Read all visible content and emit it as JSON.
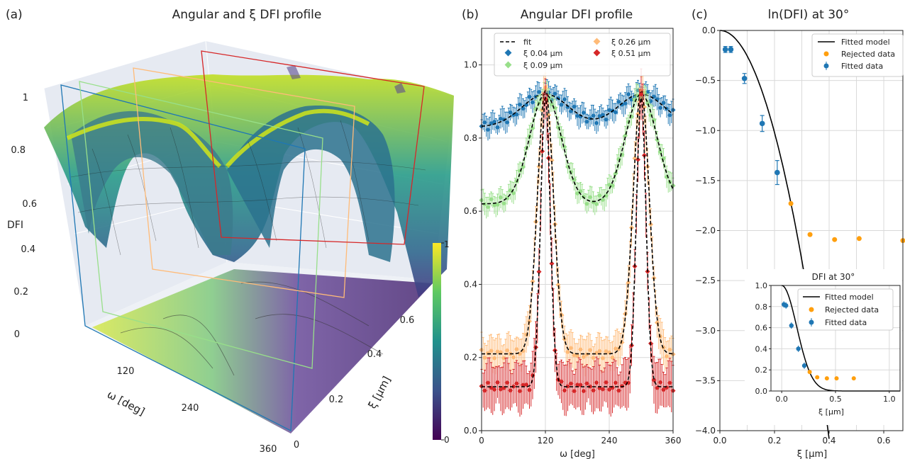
{
  "panel_a": {
    "letter": "(a)",
    "title": "Angular and ξ DFI profile",
    "z_label": "DFI",
    "z_ticks": [
      "0",
      "0.2",
      "0.4",
      "0.6",
      "0.8",
      "1"
    ],
    "omega_label": "ω [deg]",
    "omega_ticks": [
      "120",
      "240",
      "360"
    ],
    "xi_label": "ξ [µm]",
    "xi_ticks": [
      "0",
      "0.2",
      "0.4",
      "0.6"
    ],
    "colorbar_ticks": [
      "1",
      "0"
    ],
    "colormap": "viridis",
    "slice_colors": [
      "#1f77b4",
      "#98df8a",
      "#ffbb78",
      "#d62728"
    ]
  },
  "panel_b": {
    "letter": "(b)",
    "title": "Angular DFI profile",
    "xlabel": "ω [deg]",
    "x_ticks": [
      "0",
      "120",
      "240",
      "360"
    ],
    "y_ticks": [
      "0.0",
      "0.2",
      "0.4",
      "0.6",
      "0.8",
      "1.0"
    ],
    "legend": {
      "fit": "fit",
      "entries": [
        "ξ  0.04 µm",
        "ξ  0.09 µm",
        "ξ  0.26 µm",
        "ξ  0.51 µm"
      ]
    }
  },
  "panel_c": {
    "letter": "(c)",
    "title": "ln(DFI) at 30°",
    "xlabel": "ξ [µm]",
    "x_ticks": [
      "0.0",
      "0.2",
      "0.4",
      "0.6"
    ],
    "y_ticks": [
      "0.0",
      "−0.5",
      "−1.0",
      "−1.5",
      "−2.0",
      "−2.5",
      "−3.0",
      "−3.5",
      "−4.0"
    ],
    "legend": [
      "Fitted model",
      "Rejected data",
      "Fitted data"
    ],
    "inset": {
      "title": "DFI at 30°",
      "xlabel": "ξ [µm]",
      "x_ticks": [
        "0.0",
        "0.5",
        "1.0"
      ],
      "y_ticks": [
        "0.0",
        "0.2",
        "0.4",
        "0.6",
        "0.8",
        "1.0"
      ],
      "legend": [
        "Fitted model",
        "Rejected data",
        "Fitted data"
      ]
    }
  },
  "chart_data": [
    {
      "type": "surface",
      "title": "Angular and ξ DFI profile",
      "xlabel": "ω [deg]",
      "ylabel": "ξ [µm]",
      "zlabel": "DFI",
      "xlim": [
        0,
        360
      ],
      "ylim": [
        0,
        0.7
      ],
      "zlim": [
        0,
        1
      ],
      "slices_xi": [
        0.04,
        0.09,
        0.26,
        0.51
      ]
    },
    {
      "type": "line",
      "title": "Angular DFI profile",
      "xlabel": "ω [deg]",
      "xlim": [
        0,
        360
      ],
      "ylim": [
        0,
        1.1
      ],
      "peaks_deg": [
        120,
        300
      ],
      "series": [
        {
          "name": "ξ  0.04 µm",
          "color": "#1f77b4",
          "base": 0.83,
          "peak": 0.92,
          "width": 44,
          "err": 0.03
        },
        {
          "name": "ξ  0.09 µm",
          "color": "#98df8a",
          "base": 0.62,
          "peak": 0.92,
          "width": 30,
          "err": 0.03
        },
        {
          "name": "ξ  0.26 µm",
          "color": "#ffbb78",
          "base": 0.21,
          "peak": 0.93,
          "width": 15,
          "err": 0.05
        },
        {
          "name": "ξ  0.51 µm",
          "color": "#d62728",
          "base": 0.12,
          "peak": 0.91,
          "width": 9,
          "err": 0.07
        }
      ]
    },
    {
      "type": "scatter",
      "title": "ln(DFI) at 30°",
      "xlabel": "ξ [µm]",
      "xlim": [
        0,
        0.67
      ],
      "ylim": [
        -4.0,
        0.0
      ],
      "fitted_data": [
        {
          "x": 0.02,
          "y": -0.19,
          "err": 0.03
        },
        {
          "x": 0.04,
          "y": -0.19,
          "err": 0.03
        },
        {
          "x": 0.09,
          "y": -0.48,
          "err": 0.05
        },
        {
          "x": 0.155,
          "y": -0.93,
          "err": 0.08
        },
        {
          "x": 0.21,
          "y": -1.42,
          "err": 0.12
        }
      ],
      "rejected_data": [
        {
          "x": 0.26,
          "y": -1.73
        },
        {
          "x": 0.33,
          "y": -2.04
        },
        {
          "x": 0.42,
          "y": -2.09
        },
        {
          "x": 0.51,
          "y": -2.08
        },
        {
          "x": 0.67,
          "y": -2.1
        }
      ],
      "model": {
        "kind": "gaussian",
        "sigma": 0.14
      }
    },
    {
      "type": "scatter",
      "title": "DFI at 30°",
      "xlabel": "ξ [µm]",
      "xlim": [
        -0.1,
        1.1
      ],
      "ylim": [
        0,
        1.0
      ],
      "fitted_data": [
        {
          "x": 0.02,
          "y": 0.82,
          "err": 0.03
        },
        {
          "x": 0.04,
          "y": 0.81,
          "err": 0.03
        },
        {
          "x": 0.09,
          "y": 0.62,
          "err": 0.03
        },
        {
          "x": 0.155,
          "y": 0.4,
          "err": 0.03
        },
        {
          "x": 0.21,
          "y": 0.24,
          "err": 0.03
        }
      ],
      "rejected_data": [
        {
          "x": 0.26,
          "y": 0.18
        },
        {
          "x": 0.33,
          "y": 0.13
        },
        {
          "x": 0.42,
          "y": 0.12
        },
        {
          "x": 0.51,
          "y": 0.12
        },
        {
          "x": 0.67,
          "y": 0.12
        }
      ]
    }
  ]
}
